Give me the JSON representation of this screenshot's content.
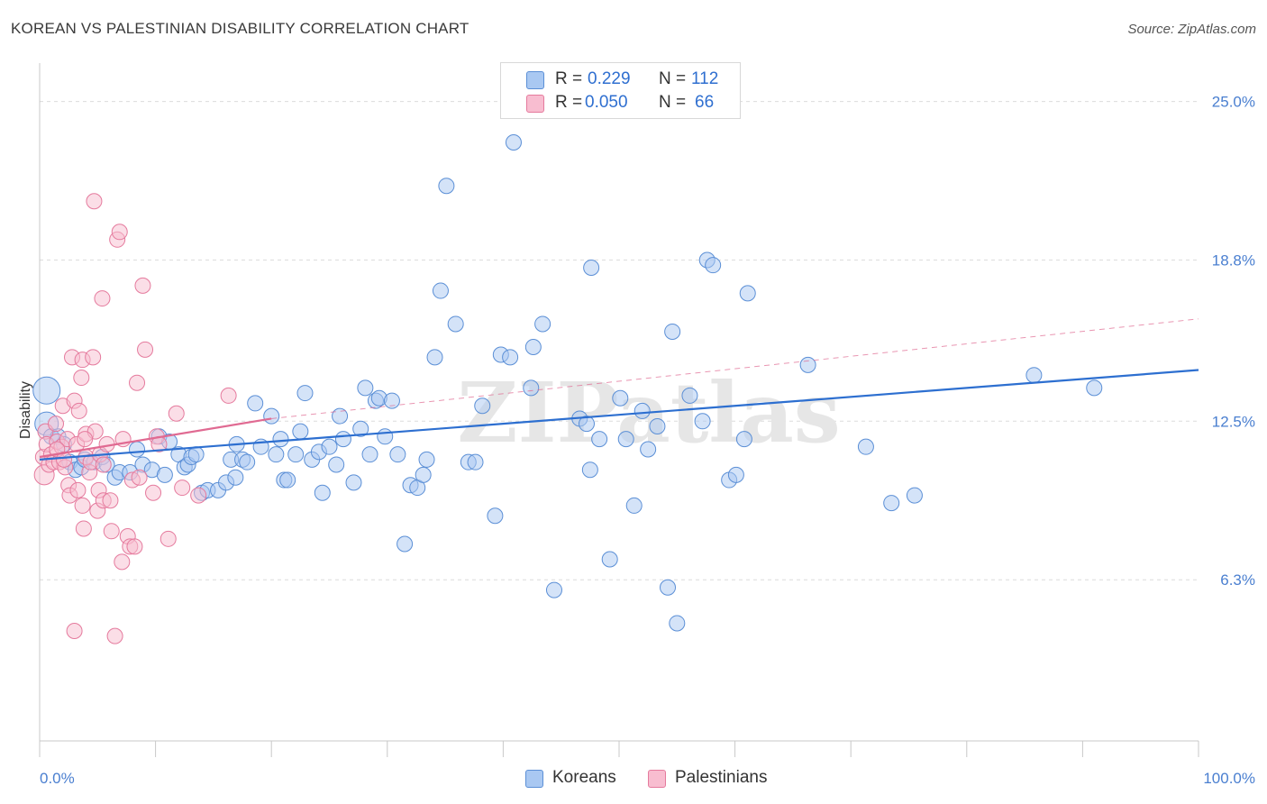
{
  "title": "KOREAN VS PALESTINIAN DISABILITY CORRELATION CHART",
  "source": "Source: ZipAtlas.com",
  "watermark": "ZIPatlas",
  "legend": {
    "rows": [
      {
        "r_label": "R =",
        "r_value": "0.229",
        "n_label": "N =",
        "n_value": "112"
      },
      {
        "r_label": "R =",
        "r_value": "0.050",
        "n_label": "N =",
        "n_value": "66"
      }
    ]
  },
  "bottom_legend": {
    "koreans": "Koreans",
    "palestinians": "Palestinians"
  },
  "colors": {
    "korean_fill": "#a9c8f2",
    "korean_stroke": "#5b8fd6",
    "korean_line": "#2d6fd0",
    "palestinian_fill": "#f8bdd0",
    "palestinian_stroke": "#e57a9d",
    "palestinian_line": "#e06a92",
    "tick_text": "#4a7fd0"
  },
  "chart_data": {
    "type": "scatter",
    "title": "KOREAN VS PALESTINIAN DISABILITY CORRELATION CHART",
    "xlabel": "",
    "ylabel": "Disability",
    "xlim": [
      0,
      100
    ],
    "ylim": [
      0,
      26.5
    ],
    "x_tick_labels": [
      "0.0%",
      "100.0%"
    ],
    "y_ticks": [
      6.3,
      12.5,
      18.8,
      25.0
    ],
    "y_tick_labels": [
      "6.3%",
      "12.5%",
      "18.8%",
      "25.0%"
    ],
    "grid": "horizontal dashed",
    "legend_placement": "top-center",
    "series": [
      {
        "name": "Koreans",
        "trend": [
          [
            0,
            11.0
          ],
          [
            100,
            14.5
          ]
        ],
        "points": [
          [
            0.6,
            13.7
          ],
          [
            0.6,
            12.4
          ],
          [
            1.0,
            11.9
          ],
          [
            1.6,
            11.9
          ],
          [
            2.1,
            11.6
          ],
          [
            2.6,
            10.9
          ],
          [
            3.1,
            10.6
          ],
          [
            3.6,
            10.7
          ],
          [
            3.9,
            11.0
          ],
          [
            4.7,
            10.9
          ],
          [
            5.4,
            11.1
          ],
          [
            5.8,
            10.8
          ],
          [
            6.5,
            10.3
          ],
          [
            6.9,
            10.5
          ],
          [
            7.8,
            10.5
          ],
          [
            8.4,
            11.4
          ],
          [
            8.9,
            10.8
          ],
          [
            9.7,
            10.6
          ],
          [
            10.3,
            11.9
          ],
          [
            10.8,
            10.4
          ],
          [
            11.2,
            11.7
          ],
          [
            12.0,
            11.2
          ],
          [
            12.5,
            10.7
          ],
          [
            12.8,
            10.8
          ],
          [
            13.1,
            11.1
          ],
          [
            13.5,
            11.2
          ],
          [
            14.0,
            9.7
          ],
          [
            14.5,
            9.8
          ],
          [
            15.4,
            9.8
          ],
          [
            16.1,
            10.1
          ],
          [
            16.9,
            10.3
          ],
          [
            16.5,
            11.0
          ],
          [
            17.0,
            11.6
          ],
          [
            17.5,
            11.0
          ],
          [
            17.9,
            10.9
          ],
          [
            18.6,
            13.2
          ],
          [
            19.1,
            11.5
          ],
          [
            20.0,
            12.7
          ],
          [
            20.4,
            11.2
          ],
          [
            20.8,
            11.8
          ],
          [
            21.1,
            10.2
          ],
          [
            21.4,
            10.2
          ],
          [
            22.1,
            11.2
          ],
          [
            22.5,
            12.1
          ],
          [
            22.9,
            13.6
          ],
          [
            23.5,
            11.0
          ],
          [
            24.1,
            11.3
          ],
          [
            24.4,
            9.7
          ],
          [
            25.0,
            11.5
          ],
          [
            25.6,
            10.8
          ],
          [
            25.9,
            12.7
          ],
          [
            26.2,
            11.8
          ],
          [
            27.1,
            10.1
          ],
          [
            27.7,
            12.2
          ],
          [
            28.1,
            13.8
          ],
          [
            28.5,
            11.2
          ],
          [
            29.0,
            13.3
          ],
          [
            29.3,
            13.4
          ],
          [
            29.8,
            11.9
          ],
          [
            30.4,
            13.3
          ],
          [
            30.9,
            11.2
          ],
          [
            31.5,
            7.7
          ],
          [
            32.0,
            10.0
          ],
          [
            32.6,
            9.9
          ],
          [
            33.1,
            10.4
          ],
          [
            33.4,
            11.0
          ],
          [
            34.1,
            15.0
          ],
          [
            34.6,
            17.6
          ],
          [
            35.1,
            21.7
          ],
          [
            35.9,
            16.3
          ],
          [
            37.0,
            10.9
          ],
          [
            37.6,
            10.9
          ],
          [
            38.2,
            13.1
          ],
          [
            39.3,
            8.8
          ],
          [
            39.8,
            15.1
          ],
          [
            40.6,
            15.0
          ],
          [
            40.9,
            23.4
          ],
          [
            42.4,
            13.8
          ],
          [
            42.6,
            15.4
          ],
          [
            43.4,
            16.3
          ],
          [
            44.4,
            5.9
          ],
          [
            46.6,
            12.6
          ],
          [
            47.2,
            12.4
          ],
          [
            47.5,
            10.6
          ],
          [
            47.6,
            18.5
          ],
          [
            48.3,
            11.8
          ],
          [
            49.2,
            7.1
          ],
          [
            50.1,
            13.4
          ],
          [
            50.6,
            11.8
          ],
          [
            51.3,
            9.2
          ],
          [
            52.0,
            12.9
          ],
          [
            52.5,
            11.4
          ],
          [
            53.3,
            12.3
          ],
          [
            54.2,
            6.0
          ],
          [
            54.6,
            16.0
          ],
          [
            55.0,
            4.6
          ],
          [
            56.1,
            13.5
          ],
          [
            57.2,
            12.5
          ],
          [
            57.6,
            18.8
          ],
          [
            58.1,
            18.6
          ],
          [
            59.5,
            10.2
          ],
          [
            60.1,
            10.4
          ],
          [
            60.8,
            11.8
          ],
          [
            61.1,
            17.5
          ],
          [
            66.3,
            14.7
          ],
          [
            71.3,
            11.5
          ],
          [
            73.5,
            9.3
          ],
          [
            75.5,
            9.6
          ],
          [
            85.8,
            14.3
          ],
          [
            91.0,
            13.8
          ]
        ]
      },
      {
        "name": "Palestinians",
        "trend": [
          [
            0,
            11.1
          ],
          [
            20,
            12.6
          ]
        ],
        "trend_extension": [
          [
            20,
            12.6
          ],
          [
            100,
            16.5
          ]
        ],
        "points": [
          [
            0.3,
            11.1
          ],
          [
            0.4,
            10.4
          ],
          [
            0.5,
            12.1
          ],
          [
            0.6,
            11.6
          ],
          [
            0.8,
            10.8
          ],
          [
            1.0,
            11.2
          ],
          [
            1.2,
            10.9
          ],
          [
            1.4,
            12.4
          ],
          [
            1.5,
            11.7
          ],
          [
            1.7,
            10.9
          ],
          [
            1.9,
            11.5
          ],
          [
            2.0,
            13.1
          ],
          [
            2.2,
            10.7
          ],
          [
            2.4,
            11.8
          ],
          [
            2.5,
            10.0
          ],
          [
            2.6,
            9.6
          ],
          [
            2.8,
            15.0
          ],
          [
            3.0,
            13.3
          ],
          [
            3.0,
            4.3
          ],
          [
            3.2,
            11.6
          ],
          [
            3.3,
            9.8
          ],
          [
            3.4,
            12.9
          ],
          [
            3.6,
            14.2
          ],
          [
            3.7,
            14.9
          ],
          [
            3.7,
            9.2
          ],
          [
            3.8,
            8.3
          ],
          [
            4.0,
            11.1
          ],
          [
            4.0,
            12.0
          ],
          [
            4.3,
            10.5
          ],
          [
            4.4,
            10.9
          ],
          [
            4.6,
            15.0
          ],
          [
            4.7,
            21.1
          ],
          [
            4.8,
            12.1
          ],
          [
            5.0,
            9.0
          ],
          [
            5.1,
            9.8
          ],
          [
            5.2,
            11.2
          ],
          [
            5.4,
            17.3
          ],
          [
            5.5,
            10.8
          ],
          [
            5.5,
            9.4
          ],
          [
            5.8,
            11.6
          ],
          [
            6.1,
            9.4
          ],
          [
            6.2,
            8.2
          ],
          [
            6.5,
            4.1
          ],
          [
            6.7,
            19.6
          ],
          [
            6.9,
            19.9
          ],
          [
            7.1,
            7.0
          ],
          [
            7.2,
            11.8
          ],
          [
            7.6,
            8.0
          ],
          [
            7.8,
            7.6
          ],
          [
            8.0,
            10.2
          ],
          [
            8.2,
            7.6
          ],
          [
            8.4,
            14.0
          ],
          [
            8.6,
            10.3
          ],
          [
            8.9,
            17.8
          ],
          [
            9.1,
            15.3
          ],
          [
            9.8,
            9.7
          ],
          [
            10.1,
            11.9
          ],
          [
            10.3,
            11.6
          ],
          [
            11.1,
            7.9
          ],
          [
            11.8,
            12.8
          ],
          [
            12.3,
            9.9
          ],
          [
            13.7,
            9.6
          ],
          [
            16.3,
            13.5
          ],
          [
            1.5,
            11.4
          ],
          [
            2.1,
            11.0
          ],
          [
            3.9,
            11.8
          ]
        ]
      }
    ]
  }
}
